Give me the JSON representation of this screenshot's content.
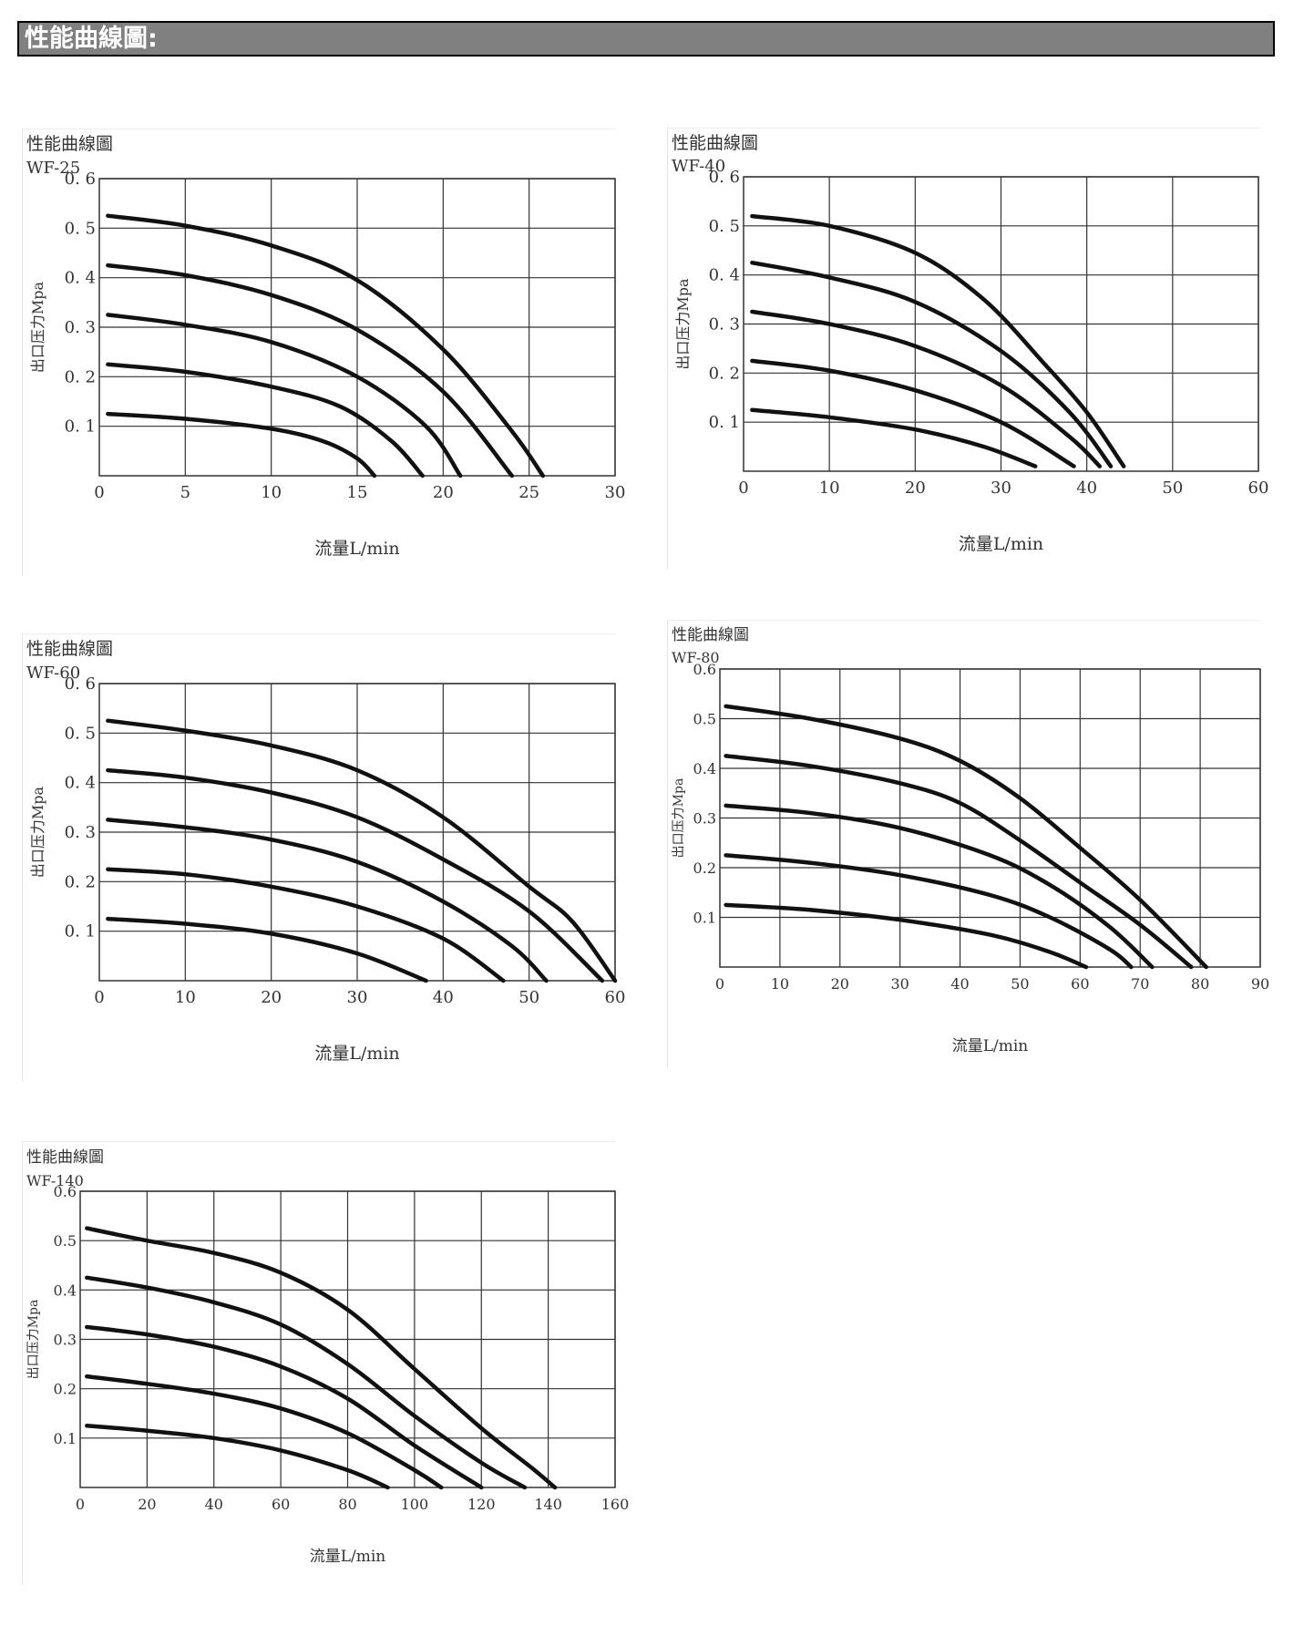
{
  "header": {
    "title": "性能曲線圖:"
  },
  "colors": {
    "header_bg": "#808080",
    "curve": "#111111",
    "grid": "#333333",
    "text": "#333333"
  },
  "chart_data": [
    {
      "type": "line",
      "title": "性能曲線圖",
      "subtitle": "WF-25",
      "xlabel": "流量L/min",
      "ylabel": "出口压力Mpa",
      "xlim": [
        0,
        30
      ],
      "ylim": [
        0,
        0.6
      ],
      "xticks": [
        0,
        5,
        10,
        15,
        20,
        25,
        30
      ],
      "yticks": [
        0.1,
        0.2,
        0.3,
        0.4,
        0.5,
        0.6
      ],
      "xtick_labels": [
        "0",
        "5",
        "10",
        "15",
        "20",
        "25",
        "30"
      ],
      "ytick_labels": [
        "0. 1",
        "0. 2",
        "0. 3",
        "0. 4",
        "0. 5",
        "0. 6"
      ],
      "grid": true,
      "series": [
        {
          "x": [
            0.5,
            5,
            10,
            13,
            15,
            16
          ],
          "y": [
            0.125,
            0.115,
            0.095,
            0.07,
            0.035,
            0.0
          ]
        },
        {
          "x": [
            0.5,
            5,
            10,
            14,
            17,
            18.8
          ],
          "y": [
            0.225,
            0.21,
            0.18,
            0.14,
            0.07,
            0.0
          ]
        },
        {
          "x": [
            0.5,
            5,
            10,
            15,
            19,
            21
          ],
          "y": [
            0.325,
            0.305,
            0.27,
            0.2,
            0.1,
            0.0
          ]
        },
        {
          "x": [
            0.5,
            5,
            10,
            15,
            20,
            24
          ],
          "y": [
            0.425,
            0.405,
            0.365,
            0.295,
            0.17,
            0.0
          ]
        },
        {
          "x": [
            0.5,
            5,
            10,
            15,
            20,
            24,
            25.8
          ],
          "y": [
            0.525,
            0.505,
            0.465,
            0.395,
            0.255,
            0.09,
            0.0
          ]
        }
      ]
    },
    {
      "type": "line",
      "title": "性能曲線圖",
      "subtitle": "WF-40",
      "xlabel": "流量L/min",
      "ylabel": "出口压力Mpa",
      "xlim": [
        0,
        60
      ],
      "ylim": [
        0,
        0.6
      ],
      "xticks": [
        0,
        10,
        20,
        30,
        40,
        50,
        60
      ],
      "yticks": [
        0.1,
        0.2,
        0.3,
        0.4,
        0.5,
        0.6
      ],
      "xtick_labels": [
        "0",
        "10",
        "20",
        "30",
        "40",
        "50",
        "60"
      ],
      "ytick_labels": [
        "0. 1",
        "0. 2",
        "0. 3",
        "0. 4",
        "0. 5",
        "0. 6"
      ],
      "grid": true,
      "series": [
        {
          "x": [
            1,
            10,
            20,
            28,
            34
          ],
          "y": [
            0.125,
            0.11,
            0.085,
            0.05,
            0.01
          ]
        },
        {
          "x": [
            1,
            10,
            20,
            30,
            38.5
          ],
          "y": [
            0.225,
            0.205,
            0.165,
            0.1,
            0.01
          ]
        },
        {
          "x": [
            1,
            10,
            20,
            30,
            38,
            41.5
          ],
          "y": [
            0.325,
            0.3,
            0.255,
            0.175,
            0.07,
            0.01
          ]
        },
        {
          "x": [
            1,
            10,
            20,
            30,
            38,
            42.8
          ],
          "y": [
            0.425,
            0.395,
            0.345,
            0.245,
            0.12,
            0.01
          ]
        },
        {
          "x": [
            1,
            10,
            20,
            28,
            35,
            40,
            44.3
          ],
          "y": [
            0.52,
            0.5,
            0.445,
            0.35,
            0.22,
            0.12,
            0.01
          ]
        }
      ]
    },
    {
      "type": "line",
      "title": "性能曲線圖",
      "subtitle": "WF-60",
      "xlabel": "流量L/min",
      "ylabel": "出口压力Mpa",
      "xlim": [
        0,
        60
      ],
      "ylim": [
        0,
        0.6
      ],
      "xticks": [
        0,
        10,
        20,
        30,
        40,
        50,
        60
      ],
      "yticks": [
        0.1,
        0.2,
        0.3,
        0.4,
        0.5,
        0.6
      ],
      "xtick_labels": [
        "0",
        "10",
        "20",
        "30",
        "40",
        "50",
        "60"
      ],
      "ytick_labels": [
        "0. 1",
        "0. 2",
        "0. 3",
        "0. 4",
        "0. 5",
        "0. 6"
      ],
      "grid": true,
      "series": [
        {
          "x": [
            1,
            10,
            20,
            30,
            38
          ],
          "y": [
            0.125,
            0.115,
            0.095,
            0.055,
            0.0
          ]
        },
        {
          "x": [
            1,
            10,
            20,
            30,
            40,
            47
          ],
          "y": [
            0.225,
            0.215,
            0.19,
            0.15,
            0.085,
            0.0
          ]
        },
        {
          "x": [
            1,
            10,
            20,
            30,
            40,
            48,
            52
          ],
          "y": [
            0.325,
            0.31,
            0.285,
            0.24,
            0.16,
            0.07,
            0.0
          ]
        },
        {
          "x": [
            1,
            10,
            20,
            30,
            40,
            50,
            58.5
          ],
          "y": [
            0.425,
            0.41,
            0.38,
            0.33,
            0.245,
            0.14,
            0.0
          ]
        },
        {
          "x": [
            1,
            10,
            20,
            30,
            40,
            50,
            55,
            60
          ],
          "y": [
            0.525,
            0.505,
            0.475,
            0.425,
            0.33,
            0.19,
            0.12,
            0.0
          ]
        }
      ]
    },
    {
      "type": "line",
      "title": "性能曲線圖",
      "subtitle": "WF-80",
      "xlabel": "流量L/min",
      "ylabel": "出口压力Mpa",
      "xlim": [
        0,
        90
      ],
      "ylim": [
        0,
        0.6
      ],
      "xticks": [
        0,
        10,
        20,
        30,
        40,
        50,
        60,
        70,
        80,
        90
      ],
      "yticks": [
        0.1,
        0.2,
        0.3,
        0.4,
        0.5,
        0.6
      ],
      "xtick_labels": [
        "0",
        "10",
        "20",
        "30",
        "40",
        "50",
        "60",
        "70",
        "80",
        "90"
      ],
      "ytick_labels": [
        "0.1",
        "0.2",
        "0.3",
        "0.4",
        "0.5",
        "0.6"
      ],
      "grid": true,
      "series": [
        {
          "x": [
            1,
            15,
            30,
            45,
            55,
            61
          ],
          "y": [
            0.125,
            0.115,
            0.095,
            0.065,
            0.03,
            0.0
          ]
        },
        {
          "x": [
            1,
            15,
            30,
            45,
            55,
            65,
            68.5
          ],
          "y": [
            0.225,
            0.21,
            0.185,
            0.145,
            0.1,
            0.035,
            0.0
          ]
        },
        {
          "x": [
            1,
            15,
            30,
            45,
            55,
            65,
            72
          ],
          "y": [
            0.325,
            0.31,
            0.28,
            0.225,
            0.165,
            0.08,
            0.0
          ]
        },
        {
          "x": [
            1,
            15,
            30,
            40,
            50,
            60,
            70,
            78.5
          ],
          "y": [
            0.425,
            0.405,
            0.37,
            0.33,
            0.255,
            0.17,
            0.085,
            0.0
          ]
        },
        {
          "x": [
            1,
            15,
            30,
            40,
            50,
            60,
            70,
            81
          ],
          "y": [
            0.525,
            0.5,
            0.46,
            0.415,
            0.34,
            0.24,
            0.135,
            0.0
          ]
        }
      ]
    },
    {
      "type": "line",
      "title": "性能曲線圖",
      "subtitle": "WF-140",
      "xlabel": "流量L/min",
      "ylabel": "出口压力Mpa",
      "xlim": [
        0,
        160
      ],
      "ylim": [
        0,
        0.6
      ],
      "xticks": [
        0,
        20,
        40,
        60,
        80,
        100,
        120,
        140,
        160
      ],
      "yticks": [
        0.1,
        0.2,
        0.3,
        0.4,
        0.5,
        0.6
      ],
      "xtick_labels": [
        "0",
        "20",
        "40",
        "60",
        "80",
        "100",
        "120",
        "140",
        "160"
      ],
      "ytick_labels": [
        "0.1",
        "0.2",
        "0.3",
        "0.4",
        "0.5",
        "0.6"
      ],
      "grid": true,
      "series": [
        {
          "x": [
            2,
            20,
            40,
            60,
            80,
            92
          ],
          "y": [
            0.125,
            0.115,
            0.1,
            0.075,
            0.035,
            0.0
          ]
        },
        {
          "x": [
            2,
            20,
            40,
            60,
            80,
            100,
            108
          ],
          "y": [
            0.225,
            0.21,
            0.19,
            0.16,
            0.11,
            0.035,
            0.0
          ]
        },
        {
          "x": [
            2,
            20,
            40,
            60,
            80,
            100,
            120
          ],
          "y": [
            0.325,
            0.31,
            0.285,
            0.245,
            0.18,
            0.085,
            0.0
          ]
        },
        {
          "x": [
            2,
            20,
            40,
            60,
            80,
            100,
            120,
            133
          ],
          "y": [
            0.425,
            0.405,
            0.375,
            0.33,
            0.25,
            0.145,
            0.05,
            0.0
          ]
        },
        {
          "x": [
            2,
            20,
            40,
            60,
            80,
            100,
            120,
            135,
            142
          ],
          "y": [
            0.525,
            0.5,
            0.475,
            0.435,
            0.36,
            0.24,
            0.12,
            0.04,
            0.0
          ]
        }
      ]
    }
  ]
}
